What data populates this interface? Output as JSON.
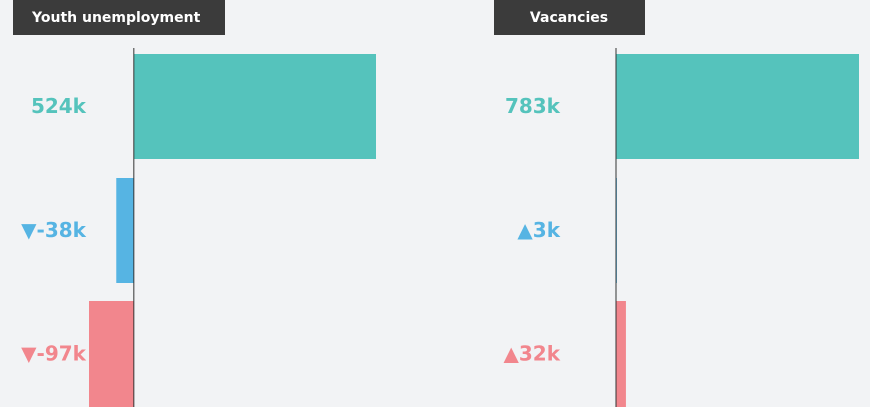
{
  "chart_data": [
    {
      "type": "bar",
      "orientation": "horizontal",
      "title": "Youth unemployment",
      "values": [
        524,
        -38,
        -97
      ],
      "value_labels": [
        "524k",
        "▼-38k",
        "▼-97k"
      ],
      "colors": [
        "#55c3bc",
        "#56b4e3",
        "#f2868d"
      ],
      "xlim": [
        -97,
        524
      ]
    },
    {
      "type": "bar",
      "orientation": "horizontal",
      "title": "Vacancies",
      "values": [
        783,
        3,
        32
      ],
      "value_labels": [
        "783k",
        "▲3k",
        "▲32k"
      ],
      "colors": [
        "#55c3bc",
        "#56b4e3",
        "#f2868d"
      ],
      "xlim": [
        0,
        783
      ]
    }
  ]
}
